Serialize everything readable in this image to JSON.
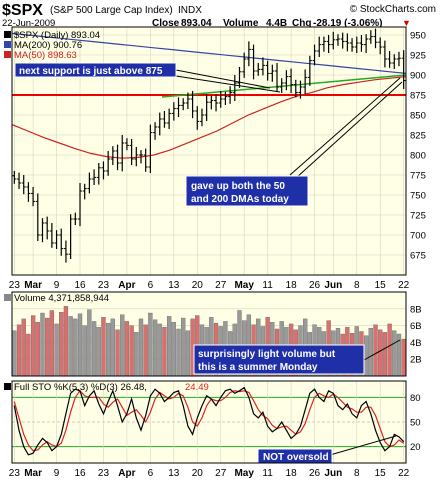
{
  "header": {
    "symbol": "$SPX",
    "name": "(S&P 500 Large Cap Index)",
    "exchange": "INDX",
    "watermark": "© StockCharts.com",
    "date": "22-Jun-2009",
    "close_label": "Close",
    "close": "893.04",
    "volume_label": "Volume",
    "volume": "4.4B",
    "chg_label": "Chg",
    "chg": "-28.19 (-3.06%)",
    "chg_arrow": "▼"
  },
  "colors": {
    "panel_bg": "#ffffe6",
    "price_bars": "#000000",
    "ma200": "#3344aa",
    "ma50": "#cc2222",
    "support_line": "#ee0000",
    "trend_line": "#22aa22",
    "vol_up": "#999999",
    "vol_down": "#d87070",
    "note_bg": "#1f2fa8",
    "note_text": "#ffffff",
    "k_line": "#000000",
    "d_line": "#dd2222",
    "sto_level": "#22aa22"
  },
  "legend": {
    "price": "$SPX (Daily) 893.04",
    "ma200": "MA(200) 900.76",
    "ma50": "MA(50) 898.63",
    "volume": "Volume 4,371,858,944",
    "sto_k": "Full STO %K(5,3) %D(3) 26.48,",
    "sto_d": "24.49"
  },
  "annotations": {
    "support": "next support is just above 875",
    "dma_line1": "gave up both the 50",
    "dma_line2": "and 200 DMAs today",
    "vol_line1": "surprisingly light volume but",
    "vol_line2": "this is a summer Monday",
    "sto": "NOT oversold"
  },
  "chart_data": [
    {
      "type": "line",
      "title": "$SPX (S&P 500 Large Cap Index) INDX",
      "ylim": [
        650,
        960
      ],
      "yticks": [
        675,
        700,
        725,
        750,
        775,
        800,
        825,
        850,
        875,
        900,
        925,
        950
      ],
      "x_tick_labels": [
        "23",
        "Mar",
        "9",
        "16",
        "23",
        "Apr",
        "6",
        "13",
        "20",
        "27",
        "May",
        "11",
        "18",
        "26",
        "Jun",
        "8",
        "15",
        "22"
      ],
      "x_tick_index": [
        0,
        4,
        9,
        14,
        19,
        24,
        29,
        34,
        39,
        44,
        49,
        54,
        59,
        64,
        68,
        73,
        78,
        83
      ],
      "series": [
        {
          "name": "$SPX (Daily)",
          "values": [
            770,
            765,
            760,
            752,
            742,
            700,
            715,
            705,
            690,
            700,
            683,
            676,
            720,
            720,
            755,
            758,
            770,
            772,
            784,
            780,
            795,
            805,
            790,
            815,
            812,
            795,
            800,
            800,
            785,
            828,
            835,
            845,
            840,
            852,
            858,
            862,
            865,
            870,
            855,
            842,
            850,
            866,
            868,
            865,
            870,
            873,
            878,
            890,
            904,
            920,
            932,
            905,
            907,
            912,
            902,
            905,
            885,
            890,
            898,
            888,
            878,
            885,
            897,
            918,
            930,
            938,
            942,
            938,
            944,
            945,
            942,
            940,
            935,
            940,
            938,
            945,
            948,
            941,
            935,
            920,
            915,
            920,
            921,
            893
          ]
        },
        {
          "name": "MA(200)",
          "values": [
            952,
            950,
            948,
            946,
            944,
            942,
            940,
            938,
            936,
            934,
            932,
            930,
            928,
            926,
            924,
            922,
            920,
            918,
            916,
            914,
            912,
            910,
            908,
            906,
            904,
            902
          ]
        },
        {
          "name": "MA(50)",
          "values": [
            838,
            830,
            822,
            815,
            808,
            802,
            798,
            796,
            797,
            800,
            806,
            814,
            822,
            830,
            840,
            850,
            858,
            866,
            873,
            878,
            884,
            888,
            891,
            894,
            896,
            898
          ]
        }
      ],
      "reference_lines": [
        875
      ]
    },
    {
      "type": "bar",
      "title": "Volume 4,371,858,944",
      "ylim": [
        0,
        10
      ],
      "yticks": [
        2,
        4,
        6,
        8
      ],
      "ylabel_units": [
        "2B",
        "4B",
        "6B",
        "8B"
      ],
      "values": [
        5.4,
        6.1,
        6.8,
        5.0,
        7.2,
        6.4,
        7.5,
        6.9,
        7.8,
        6.2,
        7.6,
        8.3,
        7.1,
        6.8,
        7.4,
        6.0,
        7.9,
        6.5,
        5.8,
        7.0,
        6.3,
        6.8,
        5.5,
        7.3,
        6.5,
        6.0,
        5.2,
        6.8,
        6.1,
        7.5,
        6.7,
        6.2,
        5.8,
        7.1,
        6.4,
        5.6,
        6.9,
        5.4,
        6.8,
        7.2,
        6.1,
        5.8,
        7.0,
        6.3,
        5.9,
        6.5,
        5.3,
        6.2,
        7.8,
        6.6,
        7.3,
        6.1,
        6.8,
        5.9,
        7.0,
        6.4,
        5.6,
        6.5,
        5.8,
        6.2,
        5.5,
        6.0,
        6.8,
        5.2,
        6.1,
        5.8,
        5.3,
        6.6,
        5.4,
        5.7,
        5.0,
        5.8,
        5.1,
        5.9,
        5.3,
        4.8,
        5.7,
        6.1,
        5.5,
        5.2,
        6.2,
        5.4,
        5.0,
        4.4
      ]
    },
    {
      "type": "line",
      "title": "Full STO %K(5,3) %D(3)",
      "ylim": [
        0,
        100
      ],
      "yticks": [
        20,
        50,
        80
      ],
      "reference_lines": [
        20,
        80
      ],
      "series": [
        {
          "name": "%K",
          "values": [
            70,
            40,
            20,
            10,
            12,
            22,
            30,
            25,
            15,
            20,
            35,
            60,
            85,
            90,
            88,
            70,
            82,
            88,
            72,
            60,
            75,
            88,
            70,
            50,
            60,
            78,
            55,
            40,
            58,
            82,
            90,
            85,
            75,
            80,
            86,
            88,
            70,
            45,
            35,
            55,
            70,
            82,
            78,
            70,
            80,
            88,
            90,
            85,
            88,
            92,
            80,
            60,
            55,
            62,
            45,
            38,
            42,
            50,
            40,
            30,
            35,
            45,
            65,
            85,
            90,
            80,
            75,
            88,
            85,
            70,
            65,
            72,
            60,
            55,
            70,
            75,
            60,
            40,
            25,
            15,
            20,
            35,
            32,
            26
          ]
        },
        {
          "name": "%D",
          "values": [
            75,
            55,
            35,
            22,
            15,
            16,
            22,
            26,
            22,
            20,
            24,
            40,
            62,
            80,
            88,
            82,
            80,
            80,
            80,
            72,
            68,
            74,
            78,
            68,
            58,
            62,
            65,
            58,
            50,
            62,
            78,
            86,
            82,
            78,
            80,
            85,
            82,
            68,
            50,
            45,
            55,
            70,
            78,
            76,
            76,
            80,
            86,
            88,
            87,
            88,
            86,
            76,
            65,
            58,
            54,
            46,
            42,
            44,
            45,
            40,
            35,
            38,
            48,
            65,
            80,
            85,
            82,
            80,
            84,
            80,
            74,
            68,
            66,
            62,
            62,
            68,
            68,
            58,
            42,
            26,
            20,
            22,
            28,
            24
          ]
        }
      ]
    }
  ]
}
